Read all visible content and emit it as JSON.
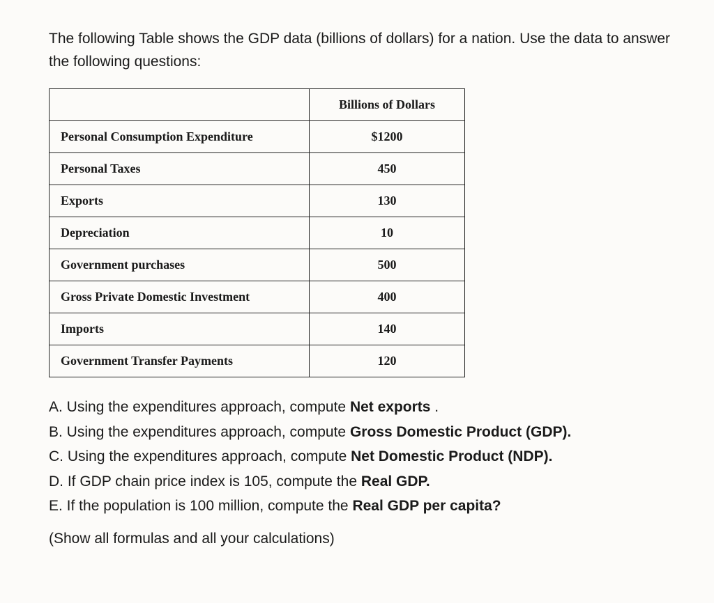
{
  "intro": "The following Table shows the GDP data (billions of dollars) for a nation. Use the data to answer the following questions:",
  "table": {
    "header_value": "Billions of Dollars",
    "rows": [
      {
        "label": "Personal Consumption Expenditure",
        "value": "$1200"
      },
      {
        "label": "Personal Taxes",
        "value": "450"
      },
      {
        "label": "Exports",
        "value": "130"
      },
      {
        "label": "Depreciation",
        "value": "10"
      },
      {
        "label": "Government purchases",
        "value": "500"
      },
      {
        "label": "Gross Private Domestic Investment",
        "value": "400"
      },
      {
        "label": "Imports",
        "value": "140"
      },
      {
        "label": "Government Transfer Payments",
        "value": "120"
      }
    ]
  },
  "questions": {
    "a": {
      "letter": "A.",
      "pre": " Using the expenditures approach, compute ",
      "bold": "Net exports",
      "post": " ."
    },
    "b": {
      "letter": "B.",
      "pre": " Using the expenditures approach, compute ",
      "bold": "Gross Domestic Product (GDP).",
      "post": ""
    },
    "c": {
      "letter": "C.",
      "pre": " Using the expenditures approach, compute ",
      "bold": "Net Domestic Product (NDP).",
      "post": ""
    },
    "d": {
      "letter": "D.",
      "pre": " If GDP chain price index is 105, compute the ",
      "bold": "Real GDP.",
      "post": ""
    },
    "e": {
      "letter": "E.",
      "pre": " If the population is 100 million, compute the ",
      "bold": "Real GDP per capita?",
      "post": ""
    }
  },
  "instruction": "(Show all formulas and all your calculations)"
}
